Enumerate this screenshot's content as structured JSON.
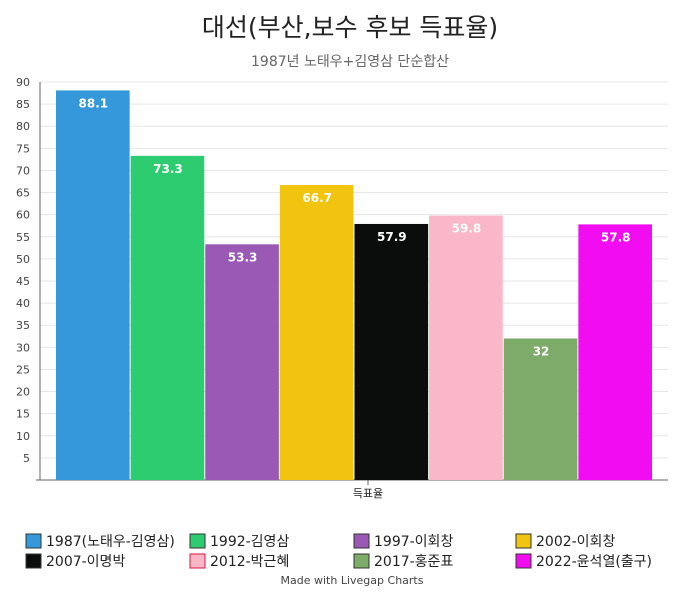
{
  "chart_data": {
    "type": "bar",
    "title": "대선(부산,보수 후보 득표율)",
    "subtitle": "1987년 노태우+김영삼 단순합산",
    "categories": [
      "득표율"
    ],
    "series": [
      {
        "name": "1987(노태우-김영삼)",
        "values": [
          88.1
        ],
        "color": "#3498db"
      },
      {
        "name": "1992-김영삼",
        "values": [
          73.3
        ],
        "color": "#2ecc71"
      },
      {
        "name": "1997-이회창",
        "values": [
          53.3
        ],
        "color": "#9b59b6"
      },
      {
        "name": "2002-이회창",
        "values": [
          66.7
        ],
        "color": "#f1c40f"
      },
      {
        "name": "2007-이명박",
        "values": [
          57.9
        ],
        "color": "#0b0c0c"
      },
      {
        "name": "2012-박근혜",
        "values": [
          59.8
        ],
        "color": "#fab7c8",
        "legend_border": "#e0103c"
      },
      {
        "name": "2017-홍준표",
        "values": [
          32
        ],
        "color": "#7dab69"
      },
      {
        "name": "2022-윤석열(출구)",
        "values": [
          57.8
        ],
        "color": "#f20cf2"
      }
    ],
    "ylim": [
      0,
      90
    ],
    "yticks": [
      5,
      10,
      15,
      20,
      25,
      30,
      35,
      40,
      45,
      50,
      55,
      60,
      65,
      70,
      75,
      80,
      85,
      90
    ],
    "grid": true,
    "legend_position": "bottom",
    "xlabel": "",
    "ylabel": ""
  },
  "footer": "Made with Livegap Charts"
}
